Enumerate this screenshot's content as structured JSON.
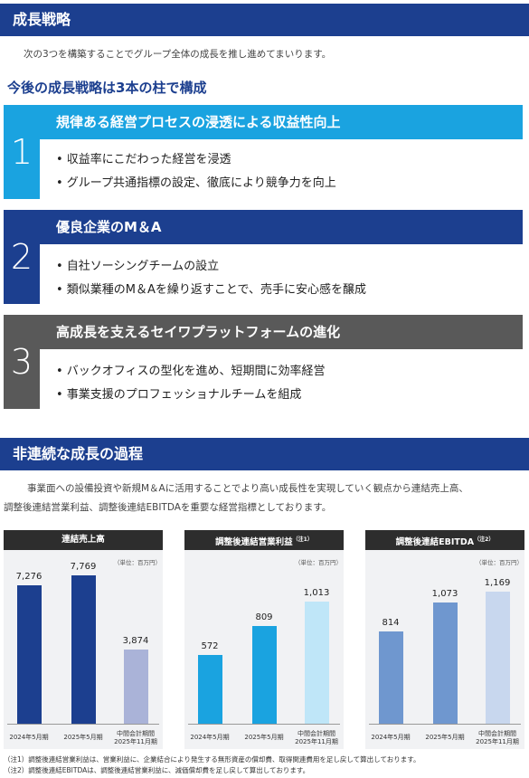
{
  "section1": {
    "title": "成長戦略",
    "intro": "次の3つを構築することでグループ全体の成長を推し進めてまいります。",
    "subtitle": "今後の成長戦略は3本の柱で構成"
  },
  "pillars": [
    {
      "num": "1",
      "title": "規律ある経営プロセスの浸透による収益性向上",
      "bullets": [
        "• 収益率にこだわった経営を浸透",
        "• グループ共通指標の設定、徹底により競争力を向上"
      ],
      "color": "#1aa3e0"
    },
    {
      "num": "2",
      "title": "優良企業のM＆A",
      "bullets": [
        "• 自社ソーシングチームの設立",
        "• 類似業種のM＆Aを繰り返すことで、売手に安心感を醸成"
      ],
      "color": "#1c3f8f"
    },
    {
      "num": "3",
      "title": "高成長を支えるセイワプラットフォームの進化",
      "bullets": [
        "• バックオフィスの型化を進め、短期間に効率経営",
        "• 事業支援のプロフェッショナルチームを組成"
      ],
      "color": "#595959"
    }
  ],
  "section2": {
    "title": "非連続な成長の過程",
    "intro_line1": "事業面への設備投資や新規M＆Aに活用することでより高い成長性を実現していく観点から連結売上高、",
    "intro_line2": "調整後連結営業利益、調整後連結EBITDAを重要な経営指標としております。"
  },
  "chart_data": [
    {
      "type": "bar",
      "title": "連結売上高",
      "unit": "（単位：百万円）",
      "categories": [
        "2024年5月期",
        "2025年5月期",
        "中間会計期間|2025年11月期"
      ],
      "values": [
        7276,
        7769,
        3874
      ],
      "labels": [
        "7,276",
        "7,769",
        "3,874"
      ],
      "colors": [
        "#1c3f8f",
        "#1c3f8f",
        "#aab3d8"
      ],
      "ymax": 9500
    },
    {
      "type": "bar",
      "title": "調整後連結営業利益",
      "title_note": "（注1）",
      "unit": "（単位：百万円）",
      "categories": [
        "2024年5月期",
        "2025年5月期",
        "中間会計期間|2025年11月期"
      ],
      "values": [
        572,
        809,
        1013
      ],
      "labels": [
        "572",
        "809",
        "1,013"
      ],
      "colors": [
        "#1aa3e0",
        "#1aa3e0",
        "#bfe6f8"
      ],
      "ymax": 1500
    },
    {
      "type": "bar",
      "title": "調整後連結EBITDA",
      "title_note": "（注2）",
      "unit": "（単位：百万円）",
      "categories": [
        "2024年5月期",
        "2025年5月期",
        "中間会計期間|2025年11月期"
      ],
      "values": [
        814,
        1073,
        1169
      ],
      "labels": [
        "814",
        "1,073",
        "1,169"
      ],
      "colors": [
        "#6f97cf",
        "#6f97cf",
        "#c8d7ee"
      ],
      "ymax": 1600
    }
  ],
  "notes": [
    "（注1）調整後連結営業利益は、営業利益に、企業結合により発生する無形資産の償却費、取得関連費用を足し戻して算出しております。",
    "（注2）調整後連結EBITDAは、調整後連結営業利益に、減価償却費を足し戻して算出しております。"
  ]
}
